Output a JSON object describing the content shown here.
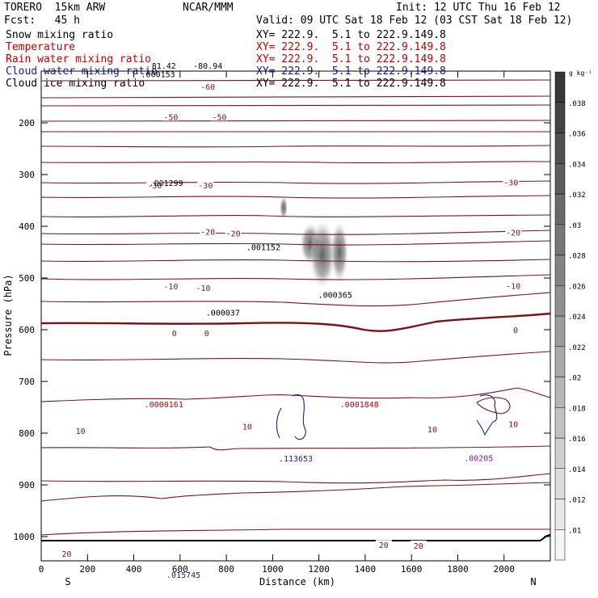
{
  "header": {
    "model": "TORERO  15km ARW",
    "center": "NCAR/MMM",
    "init": "Init: 12 UTC Thu 16 Feb 12",
    "fcst": "Fcst:   45 h",
    "valid": "Valid: 09 UTC Sat 18 Feb 12 (03 CST Sat 18 Feb 12)"
  },
  "legend": [
    {
      "name": "Snow mixing ratio",
      "color": "#000000",
      "xy": "XY= 222.9.  5.1 to 222.9.149.8"
    },
    {
      "name": "Temperature",
      "color": "#c00000",
      "xy": "XY= 222.9.  5.1 to 222.9.149.8"
    },
    {
      "name": "Rain water mixing ratio",
      "color": "#c00000",
      "xy": "XY= 222.9.  5.1 to 222.9.149.8"
    },
    {
      "name": "Cloud water mixing ratio",
      "color": "#1a1aa8",
      "xy": "XY= 222.9.  5.1 to 222.9.149.8"
    },
    {
      "name": "Cloud ice mixing ratio",
      "color": "#000000",
      "xy": "XY= 222.9.  5.1 to 222.9.149.8"
    }
  ],
  "chart_data": {
    "type": "contour",
    "xlabel": "Distance (km)",
    "ylabel": "Pressure (hPa)",
    "xlim": [
      0,
      2200
    ],
    "ylim": [
      1050,
      100
    ],
    "x_ticks": [
      0,
      200,
      400,
      600,
      800,
      1000,
      1200,
      1400,
      1600,
      1800,
      2000
    ],
    "y_ticks": [
      200,
      300,
      400,
      500,
      600,
      700,
      800,
      900,
      1000
    ],
    "x_end_labels": {
      "left": "S",
      "right": "N"
    },
    "colorbar": {
      "unit": "g kg⁻¹",
      "ticks": [
        ".01",
        ".012",
        ".014",
        ".016",
        ".018",
        ".02",
        ".022",
        ".024",
        ".026",
        ".028",
        ".03",
        ".032",
        ".034",
        ".036",
        ".038"
      ]
    },
    "temperature_labels": [
      {
        "text": "-60",
        "x": 720,
        "p": 130
      },
      {
        "text": "-50",
        "x": 560,
        "p": 188
      },
      {
        "text": "-50",
        "x": 770,
        "p": 188
      },
      {
        "text": "-30",
        "x": 490,
        "p": 320
      },
      {
        "text": "-30",
        "x": 710,
        "p": 320
      },
      {
        "text": "-30",
        "x": 2030,
        "p": 315
      },
      {
        "text": "-20",
        "x": 720,
        "p": 410
      },
      {
        "text": "-20",
        "x": 830,
        "p": 413
      },
      {
        "text": "-20",
        "x": 2040,
        "p": 412
      },
      {
        "text": "-10",
        "x": 560,
        "p": 516
      },
      {
        "text": "-10",
        "x": 700,
        "p": 519
      },
      {
        "text": "-10",
        "x": 2040,
        "p": 515
      },
      {
        "text": "0",
        "x": 575,
        "p": 606
      },
      {
        "text": "0",
        "x": 715,
        "p": 606
      },
      {
        "text": "0",
        "x": 2050,
        "p": 600
      },
      {
        "text": "10",
        "x": 170,
        "p": 795
      },
      {
        "text": "10",
        "x": 890,
        "p": 787
      },
      {
        "text": "10",
        "x": 1690,
        "p": 792
      },
      {
        "text": "10",
        "x": 2040,
        "p": 782
      },
      {
        "text": "20",
        "x": 110,
        "p": 1033
      },
      {
        "text": "20",
        "x": 1480,
        "p": 1016
      },
      {
        "text": "20",
        "x": 1630,
        "p": 1017
      }
    ],
    "maxima": [
      {
        "text": "81.42",
        "x": 530,
        "p": 95,
        "color": "#000000"
      },
      {
        "text": "-80.94",
        "x": 720,
        "p": 95,
        "color": "#000000"
      },
      {
        "text": ".000153",
        "x": 505,
        "p": 112,
        "color": "#000000"
      },
      {
        "text": ".001299",
        "x": 540,
        "p": 322,
        "color": "#000000"
      },
      {
        "text": ".001152",
        "x": 960,
        "p": 446,
        "color": "#000000"
      },
      {
        "text": ".000365",
        "x": 1270,
        "p": 538,
        "color": "#000000"
      },
      {
        "text": ".000037",
        "x": 785,
        "p": 573,
        "color": "#000000"
      },
      {
        "text": ".0000161",
        "x": 530,
        "p": 750,
        "color": "#c00000"
      },
      {
        "text": ".0001848",
        "x": 1375,
        "p": 750,
        "color": "#c00000"
      },
      {
        "text": ".113653",
        "x": 1100,
        "p": 855,
        "color": "#1a1aa8"
      },
      {
        "text": ".015745",
        "x": 615,
        "p": 1080,
        "color": "#1a1aa8"
      },
      {
        "text": ".00205",
        "x": 1890,
        "p": 854,
        "color": "#8a1a8a"
      }
    ]
  }
}
